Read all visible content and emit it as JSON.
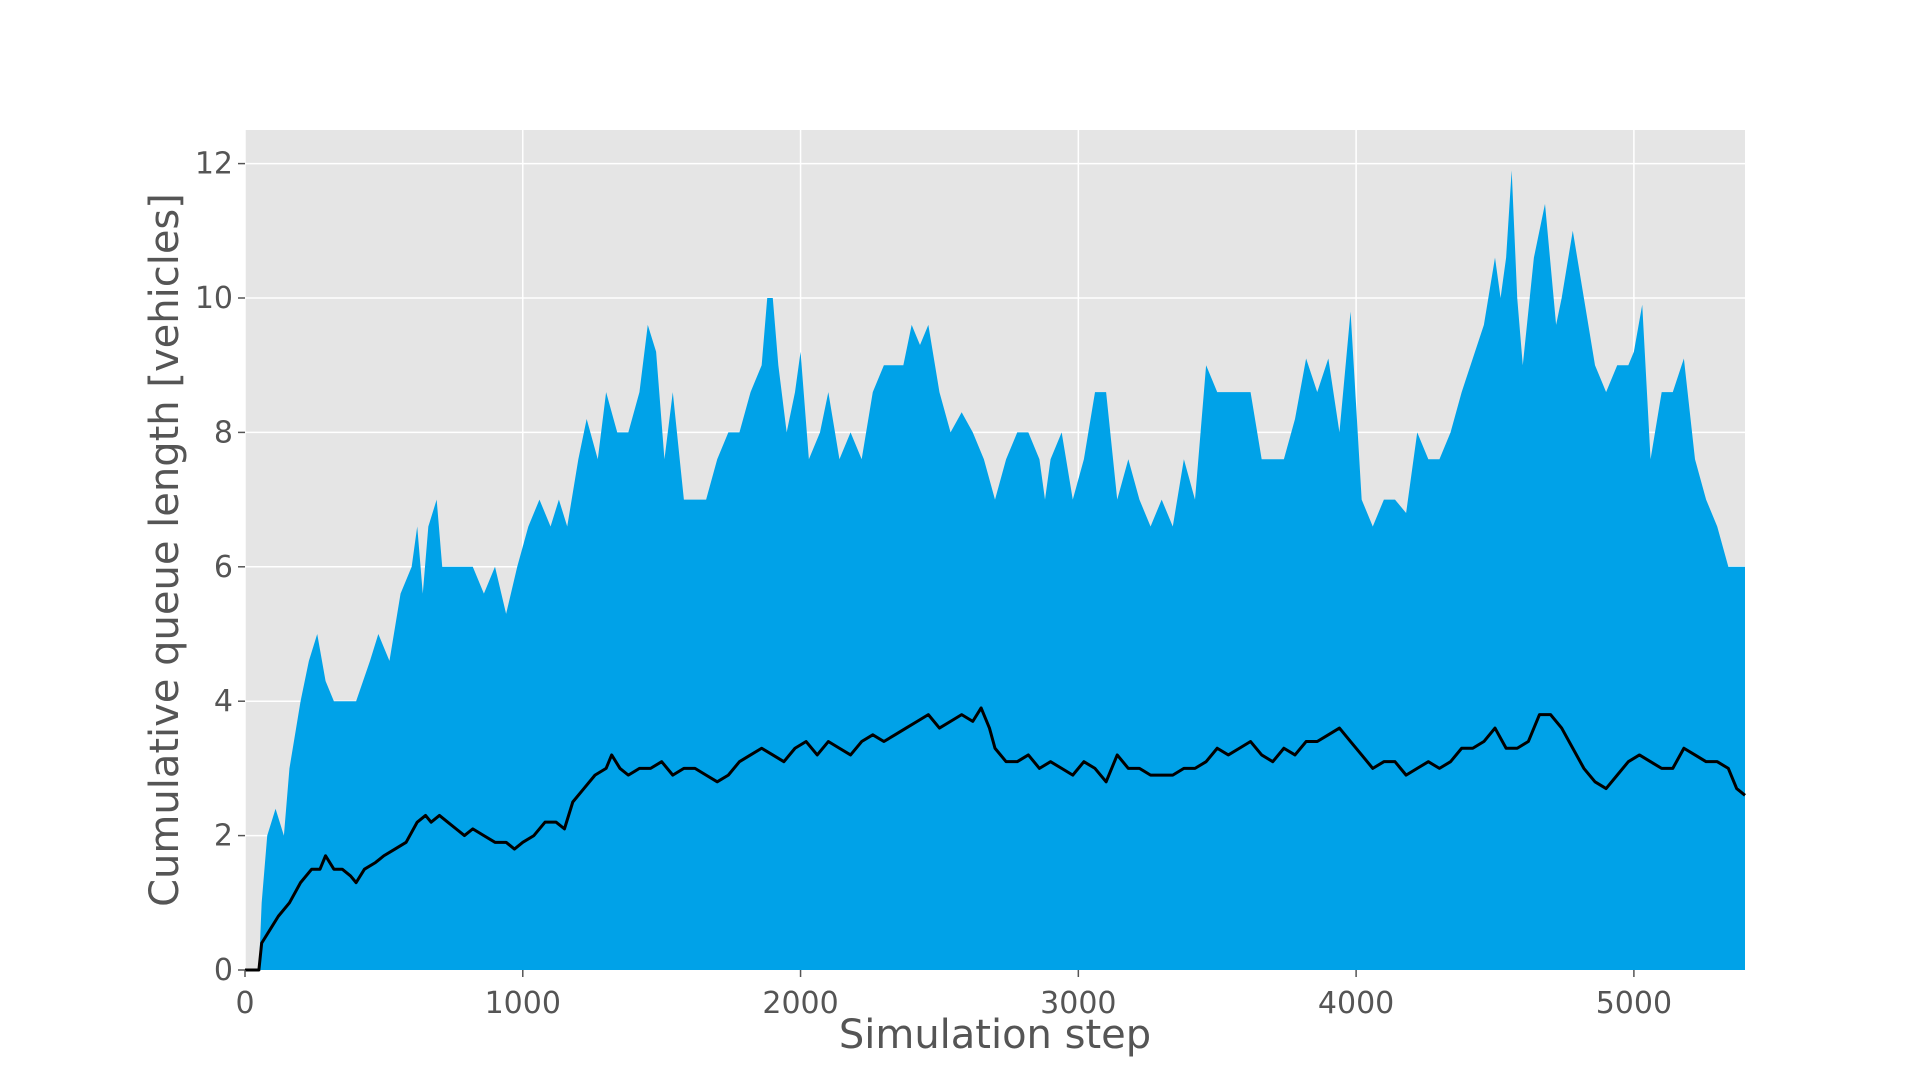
{
  "chart_data": {
    "type": "area",
    "title": "",
    "xlabel": "Simulation step",
    "ylabel": "Cumulative queue length [vehicles]",
    "xlim": [
      0,
      5400
    ],
    "ylim": [
      0,
      12.5
    ],
    "xticks": [
      0,
      1000,
      2000,
      3000,
      4000,
      5000
    ],
    "yticks": [
      0,
      2,
      4,
      6,
      8,
      10,
      12
    ],
    "grid": true,
    "legend": "none",
    "colors": {
      "background": "#e5e5e5",
      "grid": "#ffffff",
      "area": "#00a2e8",
      "line": "#000000"
    },
    "series": [
      {
        "kind": "area-upper-envelope",
        "x": [
          0,
          50,
          60,
          80,
          110,
          140,
          160,
          200,
          230,
          260,
          290,
          320,
          350,
          400,
          450,
          480,
          520,
          560,
          600,
          620,
          640,
          660,
          690,
          710,
          740,
          780,
          820,
          860,
          900,
          940,
          980,
          1020,
          1060,
          1100,
          1130,
          1160,
          1200,
          1230,
          1270,
          1300,
          1340,
          1380,
          1420,
          1450,
          1480,
          1510,
          1540,
          1580,
          1620,
          1660,
          1700,
          1740,
          1780,
          1820,
          1860,
          1880,
          1900,
          1920,
          1950,
          1980,
          2000,
          2030,
          2070,
          2100,
          2140,
          2180,
          2220,
          2260,
          2300,
          2340,
          2370,
          2400,
          2430,
          2460,
          2500,
          2540,
          2580,
          2620,
          2660,
          2700,
          2740,
          2780,
          2820,
          2860,
          2880,
          2900,
          2940,
          2980,
          3020,
          3060,
          3100,
          3140,
          3180,
          3220,
          3260,
          3300,
          3340,
          3380,
          3420,
          3460,
          3500,
          3540,
          3580,
          3620,
          3660,
          3700,
          3740,
          3780,
          3820,
          3860,
          3900,
          3940,
          3980,
          4020,
          4060,
          4100,
          4140,
          4180,
          4220,
          4260,
          4300,
          4340,
          4380,
          4420,
          4460,
          4500,
          4520,
          4540,
          4560,
          4580,
          4600,
          4640,
          4680,
          4720,
          4740,
          4780,
          4820,
          4860,
          4900,
          4940,
          4980,
          5000,
          5030,
          5060,
          5100,
          5140,
          5180,
          5220,
          5260,
          5300,
          5340,
          5380,
          5400
        ],
        "values": [
          0,
          0,
          1.0,
          2.0,
          2.4,
          2.0,
          3.0,
          4.0,
          4.6,
          5.0,
          4.3,
          4.0,
          4.0,
          4.0,
          4.6,
          5.0,
          4.6,
          5.6,
          6.0,
          6.6,
          5.6,
          6.6,
          7.0,
          6.0,
          6.0,
          6.0,
          6.0,
          5.6,
          6.0,
          5.3,
          6.0,
          6.6,
          7.0,
          6.6,
          7.0,
          6.6,
          7.6,
          8.2,
          7.6,
          8.6,
          8.0,
          8.0,
          8.6,
          9.6,
          9.2,
          7.6,
          8.6,
          7.0,
          7.0,
          7.0,
          7.6,
          8.0,
          8.0,
          8.6,
          9.0,
          10.0,
          10.0,
          9.0,
          8.0,
          8.6,
          9.2,
          7.6,
          8.0,
          8.6,
          7.6,
          8.0,
          7.6,
          8.6,
          9.0,
          9.0,
          9.0,
          9.6,
          9.3,
          9.6,
          8.6,
          8.0,
          8.3,
          8.0,
          7.6,
          7.0,
          7.6,
          8.0,
          8.0,
          7.6,
          7.0,
          7.6,
          8.0,
          7.0,
          7.6,
          8.6,
          8.6,
          7.0,
          7.6,
          7.0,
          6.6,
          7.0,
          6.6,
          7.6,
          7.0,
          9.0,
          8.6,
          8.6,
          8.6,
          8.6,
          7.6,
          7.6,
          7.6,
          8.2,
          9.1,
          8.6,
          9.1,
          8.0,
          9.8,
          7.0,
          6.6,
          7.0,
          7.0,
          6.8,
          8.0,
          7.6,
          7.6,
          8.0,
          8.6,
          9.1,
          9.6,
          10.6,
          10.0,
          10.6,
          11.9,
          10.0,
          9.0,
          10.6,
          11.4,
          9.6,
          10.0,
          11.0,
          10.0,
          9.0,
          8.6,
          9.0,
          9.0,
          9.2,
          9.9,
          7.6,
          8.6,
          8.6,
          9.1,
          7.6,
          7.0,
          6.6,
          6.0,
          6.0,
          6.0
        ]
      },
      {
        "kind": "line",
        "x": [
          0,
          50,
          60,
          90,
          120,
          160,
          200,
          240,
          270,
          290,
          320,
          350,
          380,
          400,
          430,
          470,
          500,
          540,
          580,
          620,
          650,
          670,
          700,
          730,
          760,
          790,
          820,
          860,
          900,
          940,
          970,
          1000,
          1040,
          1080,
          1120,
          1150,
          1180,
          1220,
          1260,
          1300,
          1320,
          1350,
          1380,
          1420,
          1460,
          1500,
          1540,
          1580,
          1620,
          1660,
          1700,
          1740,
          1780,
          1820,
          1860,
          1900,
          1940,
          1980,
          2020,
          2060,
          2100,
          2140,
          2180,
          2220,
          2260,
          2300,
          2340,
          2380,
          2420,
          2460,
          2500,
          2540,
          2580,
          2620,
          2650,
          2680,
          2700,
          2740,
          2780,
          2820,
          2860,
          2900,
          2940,
          2980,
          3020,
          3060,
          3100,
          3140,
          3180,
          3220,
          3260,
          3300,
          3340,
          3380,
          3420,
          3460,
          3500,
          3540,
          3580,
          3620,
          3660,
          3700,
          3740,
          3780,
          3820,
          3860,
          3900,
          3940,
          3980,
          4020,
          4060,
          4100,
          4140,
          4180,
          4220,
          4260,
          4300,
          4340,
          4380,
          4420,
          4460,
          4500,
          4540,
          4580,
          4620,
          4660,
          4700,
          4740,
          4780,
          4820,
          4860,
          4900,
          4940,
          4980,
          5020,
          5060,
          5100,
          5140,
          5180,
          5220,
          5260,
          5300,
          5340,
          5370,
          5400
        ],
        "values": [
          0,
          0,
          0.4,
          0.6,
          0.8,
          1.0,
          1.3,
          1.5,
          1.5,
          1.7,
          1.5,
          1.5,
          1.4,
          1.3,
          1.5,
          1.6,
          1.7,
          1.8,
          1.9,
          2.2,
          2.3,
          2.2,
          2.3,
          2.2,
          2.1,
          2.0,
          2.1,
          2.0,
          1.9,
          1.9,
          1.8,
          1.9,
          2.0,
          2.2,
          2.2,
          2.1,
          2.5,
          2.7,
          2.9,
          3.0,
          3.2,
          3.0,
          2.9,
          3.0,
          3.0,
          3.1,
          2.9,
          3.0,
          3.0,
          2.9,
          2.8,
          2.9,
          3.1,
          3.2,
          3.3,
          3.2,
          3.1,
          3.3,
          3.4,
          3.2,
          3.4,
          3.3,
          3.2,
          3.4,
          3.5,
          3.4,
          3.5,
          3.6,
          3.7,
          3.8,
          3.6,
          3.7,
          3.8,
          3.7,
          3.9,
          3.6,
          3.3,
          3.1,
          3.1,
          3.2,
          3.0,
          3.1,
          3.0,
          2.9,
          3.1,
          3.0,
          2.8,
          3.2,
          3.0,
          3.0,
          2.9,
          2.9,
          2.9,
          3.0,
          3.0,
          3.1,
          3.3,
          3.2,
          3.3,
          3.4,
          3.2,
          3.1,
          3.3,
          3.2,
          3.4,
          3.4,
          3.5,
          3.6,
          3.4,
          3.2,
          3.0,
          3.1,
          3.1,
          2.9,
          3.0,
          3.1,
          3.0,
          3.1,
          3.3,
          3.3,
          3.4,
          3.6,
          3.3,
          3.3,
          3.4,
          3.8,
          3.8,
          3.6,
          3.3,
          3.0,
          2.8,
          2.7,
          2.9,
          3.1,
          3.2,
          3.1,
          3.0,
          3.0,
          3.3,
          3.2,
          3.1,
          3.1,
          3.0,
          2.7,
          2.6
        ]
      }
    ]
  }
}
